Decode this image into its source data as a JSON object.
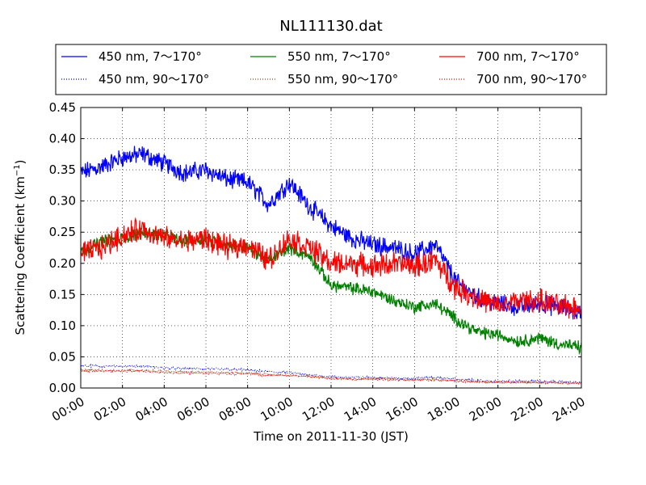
{
  "chart_data": {
    "type": "line",
    "title": "NL111130.dat",
    "xlabel": "Time on 2011-11-30 (JST)",
    "ylabel": "Scattering Coefficient (km",
    "ylabel_sup": "−1",
    "ylabel_close": ")",
    "xlim": [
      0,
      24
    ],
    "ylim": [
      0,
      0.45
    ],
    "grid": true,
    "legend_position": "top",
    "x_tick_labels": [
      "00:00",
      "02:00",
      "04:00",
      "06:00",
      "08:00",
      "10:00",
      "12:00",
      "14:00",
      "16:00",
      "18:00",
      "20:00",
      "22:00",
      "24:00"
    ],
    "y_tick_labels": [
      "0.00",
      "0.05",
      "0.10",
      "0.15",
      "0.20",
      "0.25",
      "0.30",
      "0.35",
      "0.40",
      "0.45"
    ],
    "x_hours": [
      0,
      1,
      2,
      3,
      4,
      5,
      6,
      7,
      8,
      9,
      10,
      11,
      12,
      13,
      14,
      15,
      16,
      17,
      18,
      19,
      20,
      21,
      22,
      23,
      24
    ],
    "series": [
      {
        "name": "450 nm, 7～170°",
        "color": "#0000ff",
        "style": "solid",
        "noise": 0.012,
        "values": [
          0.345,
          0.355,
          0.37,
          0.375,
          0.36,
          0.345,
          0.35,
          0.335,
          0.33,
          0.295,
          0.33,
          0.29,
          0.26,
          0.24,
          0.23,
          0.225,
          0.215,
          0.23,
          0.17,
          0.145,
          0.135,
          0.13,
          0.135,
          0.13,
          0.12
        ]
      },
      {
        "name": "450 nm, 90～170°",
        "color": "#0000ff",
        "style": "dotted",
        "noise": 0.0015,
        "values": [
          0.036,
          0.035,
          0.035,
          0.035,
          0.032,
          0.031,
          0.031,
          0.03,
          0.029,
          0.026,
          0.025,
          0.021,
          0.018,
          0.017,
          0.017,
          0.016,
          0.016,
          0.017,
          0.014,
          0.012,
          0.011,
          0.011,
          0.011,
          0.01,
          0.01
        ]
      },
      {
        "name": "550 nm, 7～170°",
        "color": "#008000",
        "style": "solid",
        "noise": 0.008,
        "values": [
          0.22,
          0.235,
          0.24,
          0.25,
          0.245,
          0.235,
          0.24,
          0.23,
          0.225,
          0.205,
          0.225,
          0.21,
          0.165,
          0.16,
          0.155,
          0.14,
          0.13,
          0.135,
          0.11,
          0.09,
          0.085,
          0.075,
          0.08,
          0.07,
          0.065
        ]
      },
      {
        "name": "550 nm, 90～170°",
        "color": "#8b4513",
        "style": "dotted",
        "noise": 0.0015,
        "values": [
          0.029,
          0.028,
          0.028,
          0.028,
          0.027,
          0.026,
          0.026,
          0.025,
          0.024,
          0.022,
          0.021,
          0.019,
          0.016,
          0.015,
          0.015,
          0.014,
          0.013,
          0.014,
          0.011,
          0.01,
          0.009,
          0.009,
          0.009,
          0.008,
          0.008
        ]
      },
      {
        "name": "700 nm, 7～170°",
        "color": "#ff0000",
        "style": "solid",
        "noise": 0.015,
        "values": [
          0.215,
          0.225,
          0.245,
          0.255,
          0.24,
          0.235,
          0.24,
          0.225,
          0.23,
          0.205,
          0.24,
          0.225,
          0.2,
          0.2,
          0.195,
          0.2,
          0.195,
          0.205,
          0.16,
          0.145,
          0.13,
          0.14,
          0.14,
          0.13,
          0.13
        ]
      },
      {
        "name": "700 nm, 90～170°",
        "color": "#ff0000",
        "style": "dotted",
        "noise": 0.0015,
        "values": [
          0.028,
          0.027,
          0.027,
          0.027,
          0.025,
          0.024,
          0.024,
          0.023,
          0.023,
          0.02,
          0.02,
          0.018,
          0.015,
          0.014,
          0.014,
          0.013,
          0.013,
          0.013,
          0.011,
          0.01,
          0.009,
          0.009,
          0.009,
          0.008,
          0.008
        ]
      }
    ]
  }
}
